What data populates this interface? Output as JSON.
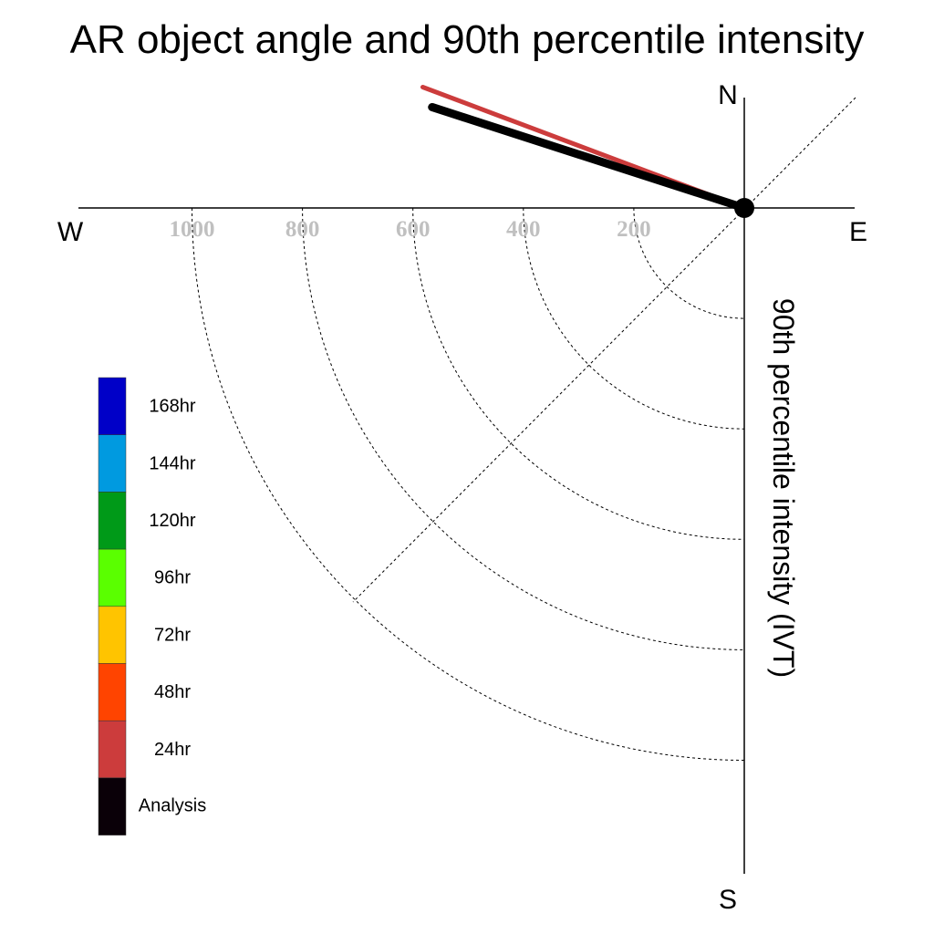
{
  "chart_data": {
    "type": "polar-vector",
    "title": "AR object angle and 90th percentile intensity",
    "ylabel": "90th percentile intensity (IVT)",
    "compass": {
      "north": "N",
      "south": "S",
      "east": "E",
      "west": "W"
    },
    "radial_ticks": [
      200,
      400,
      600,
      800,
      1000
    ],
    "radial_max": 1200,
    "grid": "dotted",
    "legend_placement": "left",
    "legend": [
      {
        "label": "168hr",
        "color": "#0000c8"
      },
      {
        "label": "144hr",
        "color": "#009ae0"
      },
      {
        "label": "120hr",
        "color": "#009a18"
      },
      {
        "label": "96hr",
        "color": "#5aff00"
      },
      {
        "label": "72hr",
        "color": "#ffc400"
      },
      {
        "label": "48hr",
        "color": "#ff4400"
      },
      {
        "label": "24hr",
        "color": "#cc3c3c"
      },
      {
        "label": "Analysis",
        "color": "#0a0008"
      }
    ],
    "series": [
      {
        "name": "24hr",
        "angle_deg": 159.4,
        "magnitude": 622,
        "color": "#cc3c3c"
      },
      {
        "name": "Analysis",
        "angle_deg": 162.1,
        "magnitude": 594,
        "color": "#000000"
      }
    ]
  }
}
